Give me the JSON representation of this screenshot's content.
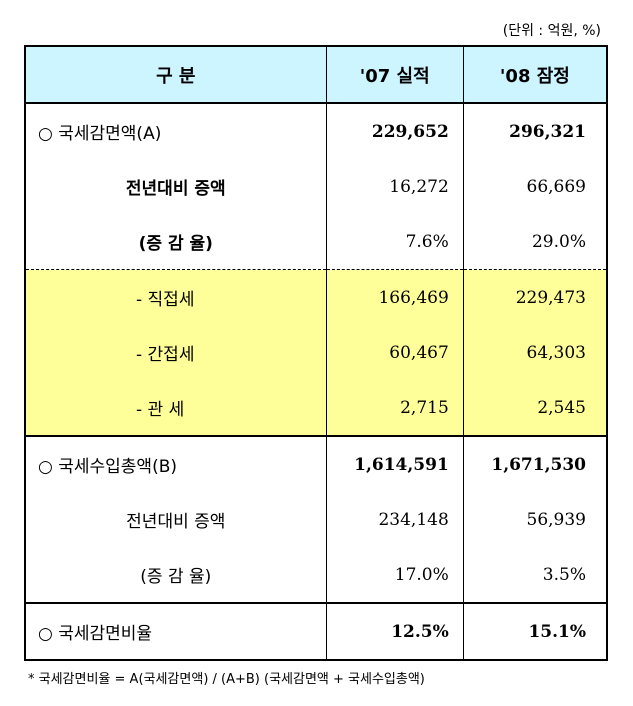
{
  "unit_note": "(단위 : 억원, %)",
  "header": {
    "col1": "구   분",
    "col2": "'07 실적",
    "col3": "'08 잠정"
  },
  "rows": [
    {
      "label": "○ 국세감면액(A)",
      "v07": "229,652",
      "v08": "296,321"
    },
    {
      "label": "전년대비 증액",
      "v07": "16,272",
      "v08": "66,669"
    },
    {
      "label": "(증 감 율)",
      "v07": "7.6%",
      "v08": "29.0%"
    },
    {
      "label": "- 직접세",
      "v07": "166,469",
      "v08": "229,473"
    },
    {
      "label": "- 간접세",
      "v07": "60,467",
      "v08": "64,303"
    },
    {
      "label": "- 관   세",
      "v07": "2,715",
      "v08": "2,545"
    },
    {
      "label": "○ 국세수입총액(B)",
      "v07": "1,614,591",
      "v08": "1,671,530"
    },
    {
      "label": "전년대비 증액",
      "v07": "234,148",
      "v08": "56,939"
    },
    {
      "label": "(증 감 율)",
      "v07": "17.0%",
      "v08": "3.5%"
    },
    {
      "label": "○ 국세감면비율",
      "v07": "12.5%",
      "v08": "15.1%"
    }
  ],
  "footnote": "* 국세감면비율 = A(국세감면액) / (A+B) (국세감면액 + 국세수입총액)"
}
